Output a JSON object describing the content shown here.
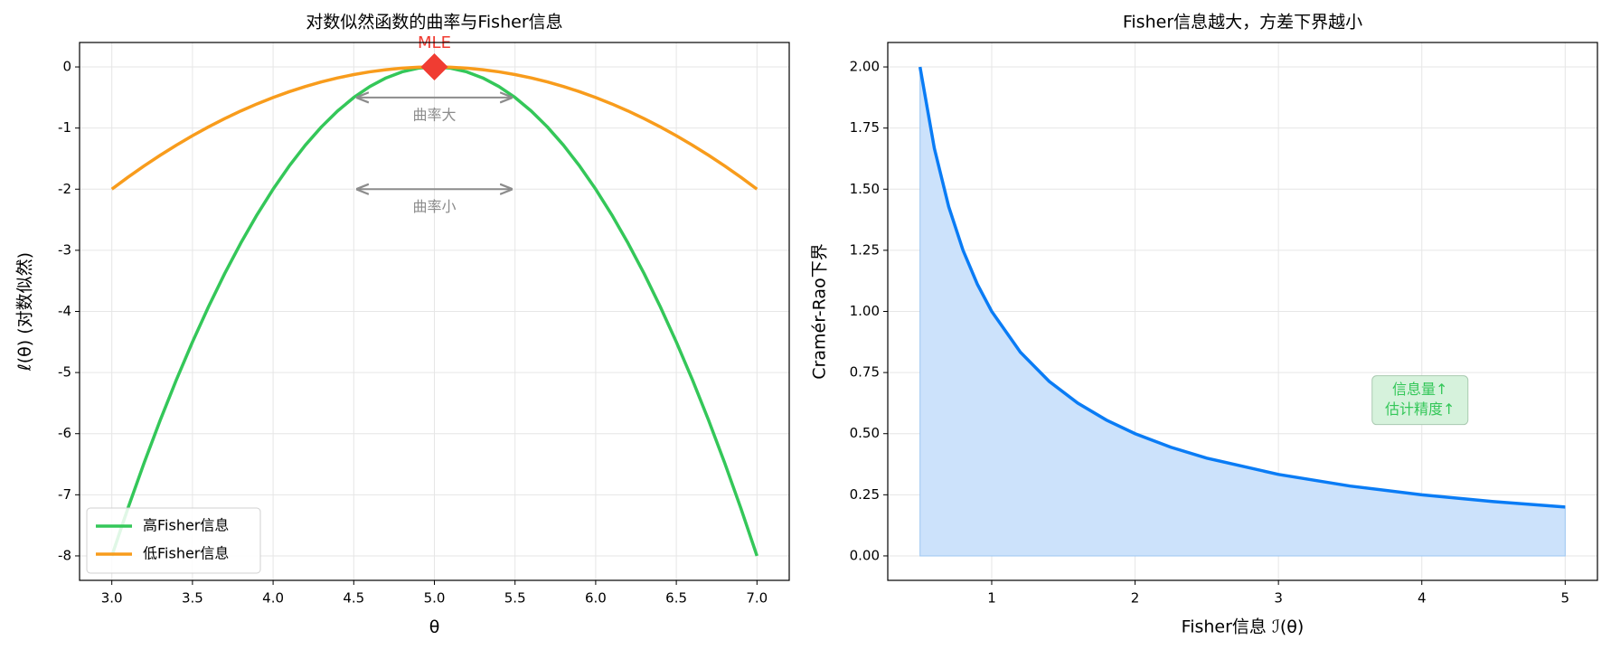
{
  "chart_data": [
    {
      "type": "line",
      "title": "对数似然函数的曲率与Fisher信息",
      "xlabel": "θ",
      "ylabel": "ℓ(θ) (对数似然)",
      "x": [
        3.0,
        3.1,
        3.2,
        3.3,
        3.4,
        3.5,
        3.6,
        3.7,
        3.8,
        3.9,
        4.0,
        4.1,
        4.2,
        4.3,
        4.4,
        4.5,
        4.6,
        4.7,
        4.8,
        4.9,
        5.0,
        5.1,
        5.2,
        5.3,
        5.4,
        5.5,
        5.6,
        5.7,
        5.8,
        5.9,
        6.0,
        6.1,
        6.2,
        6.3,
        6.4,
        6.5,
        6.6,
        6.7,
        6.8,
        6.9,
        7.0
      ],
      "series": [
        {
          "name": "高Fisher信息",
          "color": "#34c759",
          "values": [
            -8,
            -7.22,
            -6.48,
            -5.78,
            -5.12,
            -4.5,
            -3.92,
            -3.38,
            -2.88,
            -2.42,
            -2,
            -1.62,
            -1.28,
            -0.98,
            -0.72,
            -0.5,
            -0.32,
            -0.18,
            -0.08,
            -0.02,
            0,
            -0.02,
            -0.08,
            -0.18,
            -0.32,
            -0.5,
            -0.72,
            -0.98,
            -1.28,
            -1.62,
            -2,
            -2.42,
            -2.88,
            -3.38,
            -3.92,
            -4.5,
            -5.12,
            -5.78,
            -6.48,
            -7.22,
            -8
          ]
        },
        {
          "name": "低Fisher信息",
          "color": "#f89c1c",
          "values": [
            -2,
            -1.805,
            -1.62,
            -1.445,
            -1.28,
            -1.125,
            -0.98,
            -0.845,
            -0.72,
            -0.605,
            -0.5,
            -0.405,
            -0.32,
            -0.245,
            -0.18,
            -0.125,
            -0.08,
            -0.045,
            -0.02,
            -0.005,
            0,
            -0.005,
            -0.02,
            -0.045,
            -0.08,
            -0.125,
            -0.18,
            -0.245,
            -0.32,
            -0.405,
            -0.5,
            -0.605,
            -0.72,
            -0.845,
            -0.98,
            -1.125,
            -1.28,
            -1.445,
            -1.62,
            -1.805,
            -2
          ]
        }
      ],
      "point": {
        "x": 5,
        "y": 0,
        "label": "MLE",
        "color": "#f03c32"
      },
      "annotations": [
        {
          "text": "曲率大",
          "x": [
            4.5,
            5.5
          ],
          "y": -0.5
        },
        {
          "text": "曲率小",
          "x": [
            4.5,
            5.5
          ],
          "y": -2
        }
      ],
      "xlim": [
        2.8,
        7.2
      ],
      "ylim": [
        -8.4,
        0.4
      ],
      "xticks": [
        {
          "value": 3,
          "label": "3.0"
        },
        {
          "value": 3.5,
          "label": "3.5"
        },
        {
          "value": 4,
          "label": "4.0"
        },
        {
          "value": 4.5,
          "label": "4.5"
        },
        {
          "value": 5,
          "label": "5.0"
        },
        {
          "value": 5.5,
          "label": "5.5"
        },
        {
          "value": 6,
          "label": "6.0"
        },
        {
          "value": 6.5,
          "label": "6.5"
        },
        {
          "value": 7,
          "label": "7.0"
        }
      ],
      "yticks": [
        0,
        -1,
        -2,
        -3,
        -4,
        -5,
        -6,
        -7,
        -8
      ],
      "grid": true,
      "legend": "lower left"
    },
    {
      "type": "area",
      "title": "Fisher信息越大，方差下界越小",
      "xlabel": "Fisher信息 ℐ(θ)",
      "ylabel": "Cramér-Rao下界",
      "x": [
        0.5,
        0.6,
        0.7,
        0.8,
        0.9,
        1,
        1.2,
        1.4,
        1.6,
        1.8,
        2,
        2.25,
        2.5,
        3,
        3.5,
        4,
        4.5,
        5
      ],
      "series": [
        {
          "color": "#0a7cf5",
          "fill": "#cce2fb",
          "values": [
            2,
            1.6667,
            1.4286,
            1.25,
            1.1111,
            1,
            0.8333,
            0.7143,
            0.625,
            0.5556,
            0.5,
            0.4444,
            0.4,
            0.3333,
            0.2857,
            0.25,
            0.2222,
            0.2
          ]
        }
      ],
      "annotation_lines": [
        "信息量↑",
        "估计精度↑"
      ],
      "annotation_color": "#34c759",
      "xlim": [
        0.275,
        5.225
      ],
      "ylim": [
        -0.1,
        2.1
      ],
      "xticks": [
        1,
        2,
        3,
        4,
        5
      ],
      "yticks": [
        {
          "value": 0,
          "label": "0.00"
        },
        {
          "value": 0.25,
          "label": "0.25"
        },
        {
          "value": 0.5,
          "label": "0.50"
        },
        {
          "value": 0.75,
          "label": "0.75"
        },
        {
          "value": 1,
          "label": "1.00"
        },
        {
          "value": 1.25,
          "label": "1.25"
        },
        {
          "value": 1.5,
          "label": "1.50"
        },
        {
          "value": 1.75,
          "label": "1.75"
        },
        {
          "value": 2,
          "label": "2.00"
        }
      ],
      "grid": true
    }
  ]
}
